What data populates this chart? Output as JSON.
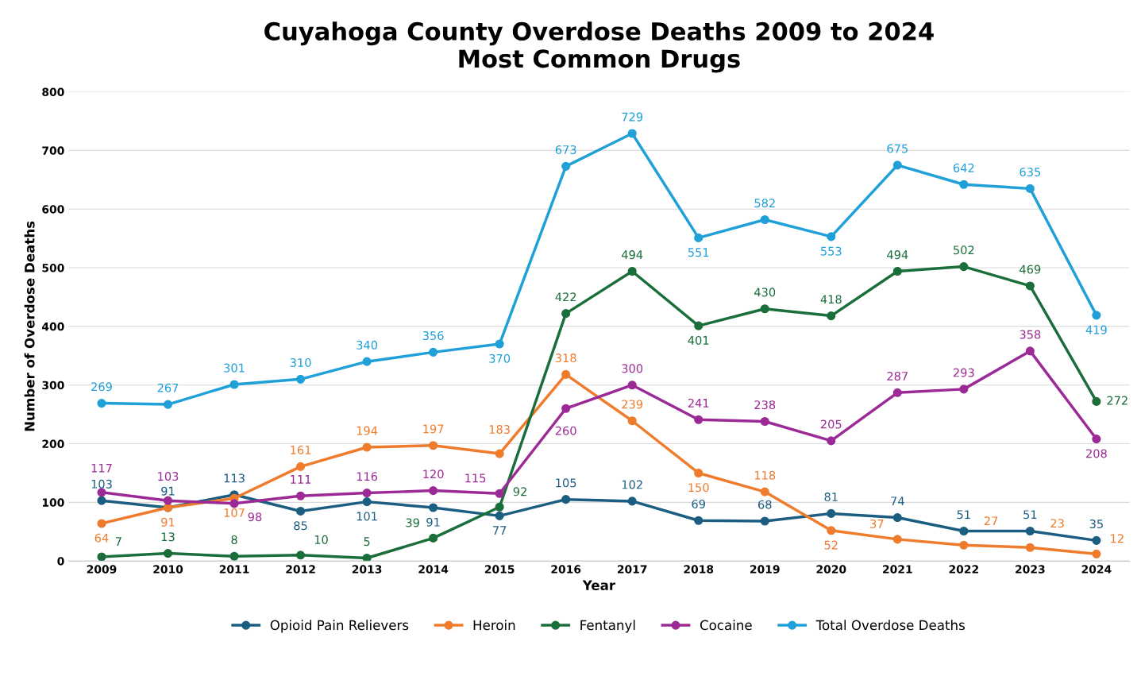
{
  "chart_data": {
    "type": "line",
    "title": "Cuyahoga County Overdose Deaths 2009 to 2024\nMost Common Drugs",
    "xlabel": "Year",
    "ylabel": "Number of Overdose Deaths",
    "categories": [
      "2009",
      "2010",
      "2011",
      "2012",
      "2013",
      "2014",
      "2015",
      "2016",
      "2017",
      "2018",
      "2019",
      "2020",
      "2021",
      "2022",
      "2023",
      "2024"
    ],
    "series": [
      {
        "name": "Opioid Pain Relievers",
        "color": "#1b5e82",
        "values": [
          103,
          91,
          113,
          85,
          101,
          91,
          77,
          105,
          102,
          69,
          68,
          81,
          74,
          51,
          51,
          35
        ]
      },
      {
        "name": "Heroin",
        "color": "#ef7b2d",
        "values": [
          64,
          91,
          107,
          161,
          194,
          197,
          183,
          318,
          239,
          150,
          118,
          52,
          37,
          27,
          23,
          12
        ]
      },
      {
        "name": "Fentanyl",
        "color": "#1a6e3a",
        "values": [
          7,
          13,
          8,
          10,
          5,
          39,
          92,
          422,
          494,
          401,
          430,
          418,
          494,
          502,
          469,
          272
        ]
      },
      {
        "name": "Cocaine",
        "color": "#9c2a96",
        "values": [
          117,
          103,
          98,
          111,
          116,
          120,
          115,
          260,
          300,
          241,
          238,
          205,
          287,
          293,
          358,
          208
        ]
      },
      {
        "name": "Total Overdose Deaths",
        "color": "#1fa0d8",
        "values": [
          269,
          267,
          301,
          310,
          340,
          356,
          370,
          673,
          729,
          551,
          582,
          553,
          675,
          642,
          635,
          419
        ]
      }
    ],
    "ylim": [
      0,
      800
    ],
    "yticks": [
      0,
      100,
      200,
      300,
      400,
      500,
      600,
      700,
      800
    ],
    "grid": "y",
    "legend": "bottom",
    "marker": "circle",
    "line_style": "solid",
    "data_labels": true
  }
}
